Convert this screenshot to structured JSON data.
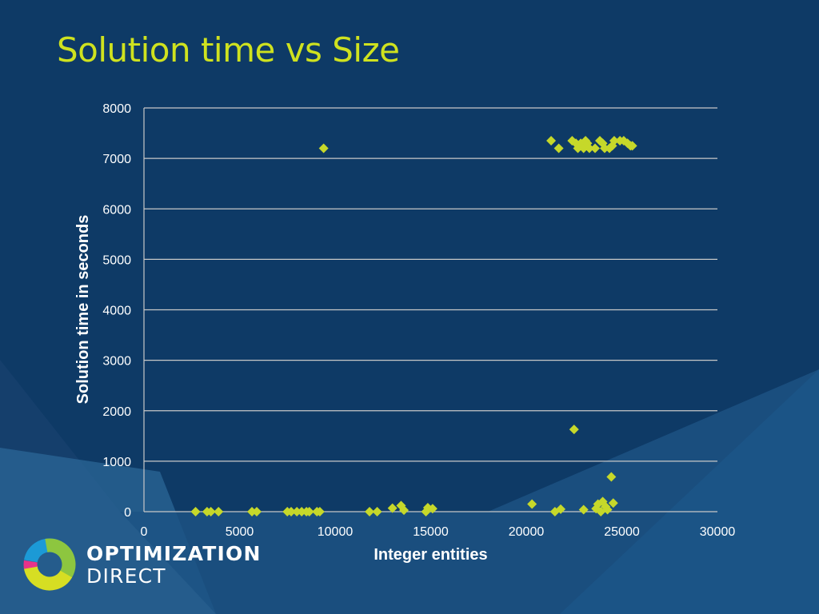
{
  "slide": {
    "title": "Solution time vs Size"
  },
  "logo": {
    "line1": "OPTIMIZATION",
    "line2": "DIRECT",
    "colors": [
      "#1c9ad6",
      "#8dc63f",
      "#d6de23",
      "#e7338a"
    ]
  },
  "colors": {
    "background": "#0e3a66",
    "title": "#cfe21f",
    "marker": "#c6d82a",
    "gridline": "#c8c8c8"
  },
  "chart_data": {
    "type": "scatter",
    "title": "",
    "xlabel": "Integer entities",
    "ylabel": "Solution time in seconds",
    "xlim": [
      0,
      30000
    ],
    "ylim": [
      0,
      8000
    ],
    "x_ticks": [
      0,
      5000,
      10000,
      15000,
      20000,
      25000,
      30000
    ],
    "y_ticks": [
      0,
      1000,
      2000,
      3000,
      4000,
      5000,
      6000,
      7000,
      8000
    ],
    "grid": "horizontal",
    "legend": "none",
    "marker": "diamond",
    "points": [
      {
        "x": 2700,
        "y": 0
      },
      {
        "x": 3300,
        "y": 0
      },
      {
        "x": 3500,
        "y": 0
      },
      {
        "x": 3900,
        "y": 0
      },
      {
        "x": 5650,
        "y": 0
      },
      {
        "x": 5900,
        "y": 0
      },
      {
        "x": 7500,
        "y": 0
      },
      {
        "x": 7700,
        "y": 0
      },
      {
        "x": 8000,
        "y": 0
      },
      {
        "x": 8250,
        "y": 0
      },
      {
        "x": 8500,
        "y": 0
      },
      {
        "x": 8650,
        "y": 0
      },
      {
        "x": 9050,
        "y": 0
      },
      {
        "x": 9200,
        "y": 0
      },
      {
        "x": 9400,
        "y": 7200
      },
      {
        "x": 11800,
        "y": 0
      },
      {
        "x": 12200,
        "y": 0
      },
      {
        "x": 13000,
        "y": 70
      },
      {
        "x": 13450,
        "y": 120
      },
      {
        "x": 13600,
        "y": 30
      },
      {
        "x": 14750,
        "y": 0
      },
      {
        "x": 14850,
        "y": 80
      },
      {
        "x": 15100,
        "y": 60
      },
      {
        "x": 20300,
        "y": 150
      },
      {
        "x": 21300,
        "y": 7350
      },
      {
        "x": 21500,
        "y": 0
      },
      {
        "x": 21700,
        "y": 7200
      },
      {
        "x": 21800,
        "y": 50
      },
      {
        "x": 22400,
        "y": 7350
      },
      {
        "x": 22500,
        "y": 1630
      },
      {
        "x": 22600,
        "y": 7300
      },
      {
        "x": 22700,
        "y": 7200
      },
      {
        "x": 22850,
        "y": 7300
      },
      {
        "x": 23000,
        "y": 40
      },
      {
        "x": 23000,
        "y": 7200
      },
      {
        "x": 23100,
        "y": 7350
      },
      {
        "x": 23200,
        "y": 7300
      },
      {
        "x": 23300,
        "y": 7200
      },
      {
        "x": 23600,
        "y": 7200
      },
      {
        "x": 23650,
        "y": 60
      },
      {
        "x": 23750,
        "y": 150
      },
      {
        "x": 23850,
        "y": 7350
      },
      {
        "x": 23900,
        "y": 0
      },
      {
        "x": 24000,
        "y": 7300
      },
      {
        "x": 24000,
        "y": 200
      },
      {
        "x": 24100,
        "y": 7200
      },
      {
        "x": 24150,
        "y": 100
      },
      {
        "x": 24250,
        "y": 40
      },
      {
        "x": 24350,
        "y": 7200
      },
      {
        "x": 24450,
        "y": 690
      },
      {
        "x": 24500,
        "y": 7250
      },
      {
        "x": 24550,
        "y": 170
      },
      {
        "x": 24600,
        "y": 7350
      },
      {
        "x": 24900,
        "y": 7350
      },
      {
        "x": 25100,
        "y": 7350
      },
      {
        "x": 25300,
        "y": 7300
      },
      {
        "x": 25450,
        "y": 7250
      },
      {
        "x": 25550,
        "y": 7250
      }
    ]
  }
}
